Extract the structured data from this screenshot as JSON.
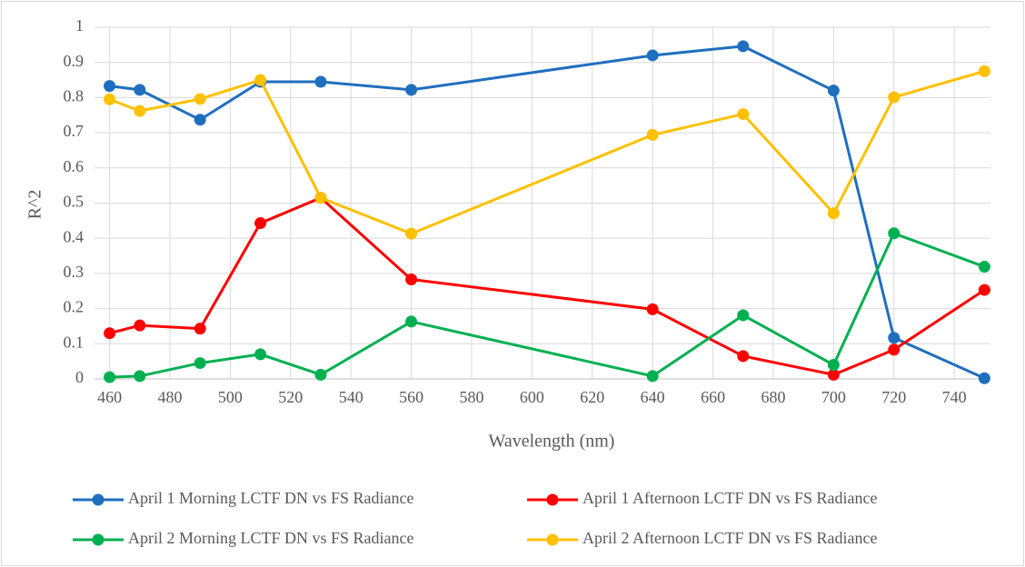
{
  "chart_data": {
    "type": "line",
    "x_label": "Wavelength (nm)",
    "y_label": "R^2",
    "x": [
      460,
      470,
      490,
      510,
      530,
      560,
      640,
      670,
      700,
      720,
      750
    ],
    "series": [
      {
        "name": "April 1 Morning LCTF DN vs FS Radiance",
        "color": "#1f6fbf",
        "values": [
          0.833,
          0.822,
          0.737,
          0.845,
          0.845,
          0.822,
          0.92,
          0.946,
          0.82,
          0.117,
          0.002
        ]
      },
      {
        "name": "April 1 Afternoon LCTF DN vs FS Radiance",
        "color": "#ff0000",
        "values": [
          0.13,
          0.152,
          0.143,
          0.443,
          0.515,
          0.283,
          0.198,
          0.065,
          0.012,
          0.083,
          0.253
        ]
      },
      {
        "name": "April 2 Morning LCTF DN vs FS Radiance",
        "color": "#00b050",
        "values": [
          0.005,
          0.008,
          0.045,
          0.07,
          0.012,
          0.163,
          0.008,
          0.181,
          0.04,
          0.414,
          0.319
        ]
      },
      {
        "name": "April 2 Afternoon LCTF DN vs FS Radiance",
        "color": "#ffc000",
        "values": [
          0.795,
          0.762,
          0.796,
          0.85,
          0.515,
          0.413,
          0.694,
          0.753,
          0.471,
          0.801,
          0.875
        ]
      }
    ],
    "xlim": [
      455,
      752
    ],
    "xticks": [
      460,
      480,
      500,
      520,
      540,
      560,
      580,
      600,
      620,
      640,
      660,
      680,
      700,
      720,
      740
    ],
    "ylim": [
      0,
      1
    ],
    "yticks": [
      0,
      0.1,
      0.2,
      0.3,
      0.4,
      0.5,
      0.6,
      0.7,
      0.8,
      0.9,
      1
    ],
    "grid": true,
    "legend": "bottom"
  }
}
